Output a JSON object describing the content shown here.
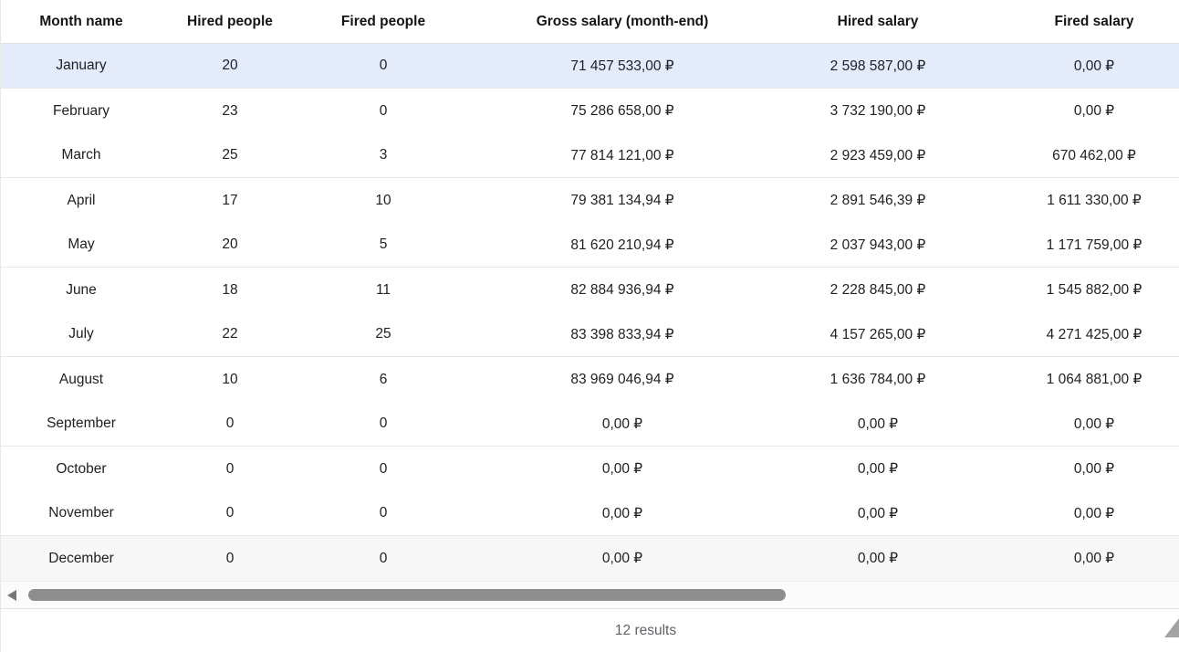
{
  "table": {
    "columns": [
      {
        "key": "month",
        "label": "Month name"
      },
      {
        "key": "hired",
        "label": "Hired people"
      },
      {
        "key": "fired",
        "label": "Fired people"
      },
      {
        "key": "gross",
        "label": "Gross salary (month-end)"
      },
      {
        "key": "hired_salary",
        "label": "Hired salary"
      },
      {
        "key": "fired_salary",
        "label": "Fired salary"
      }
    ],
    "rows": [
      {
        "month": "January",
        "hired": "20",
        "fired": "0",
        "gross": "71 457 533,00 ₽",
        "hired_salary": "2 598 587,00 ₽",
        "fired_salary": "0,00 ₽",
        "state": "selected",
        "separator": true
      },
      {
        "month": "February",
        "hired": "23",
        "fired": "0",
        "gross": "75 286 658,00 ₽",
        "hired_salary": "3 732 190,00 ₽",
        "fired_salary": "0,00 ₽",
        "state": "",
        "separator": false
      },
      {
        "month": "March",
        "hired": "25",
        "fired": "3",
        "gross": "77 814 121,00 ₽",
        "hired_salary": "2 923 459,00 ₽",
        "fired_salary": "670 462,00 ₽",
        "state": "",
        "separator": true
      },
      {
        "month": "April",
        "hired": "17",
        "fired": "10",
        "gross": "79 381 134,94 ₽",
        "hired_salary": "2 891 546,39 ₽",
        "fired_salary": "1 611 330,00 ₽",
        "state": "",
        "separator": false
      },
      {
        "month": "May",
        "hired": "20",
        "fired": "5",
        "gross": "81 620 210,94 ₽",
        "hired_salary": "2 037 943,00 ₽",
        "fired_salary": "1 171 759,00 ₽",
        "state": "",
        "separator": true
      },
      {
        "month": "June",
        "hired": "18",
        "fired": "11",
        "gross": "82 884 936,94 ₽",
        "hired_salary": "2 228 845,00 ₽",
        "fired_salary": "1 545 882,00 ₽",
        "state": "",
        "separator": false
      },
      {
        "month": "July",
        "hired": "22",
        "fired": "25",
        "gross": "83 398 833,94 ₽",
        "hired_salary": "4 157 265,00 ₽",
        "fired_salary": "4 271 425,00 ₽",
        "state": "",
        "separator": true
      },
      {
        "month": "August",
        "hired": "10",
        "fired": "6",
        "gross": "83 969 046,94 ₽",
        "hired_salary": "1 636 784,00 ₽",
        "fired_salary": "1 064 881,00 ₽",
        "state": "",
        "separator": false
      },
      {
        "month": "September",
        "hired": "0",
        "fired": "0",
        "gross": "0,00 ₽",
        "hired_salary": "0,00 ₽",
        "fired_salary": "0,00 ₽",
        "state": "",
        "separator": true
      },
      {
        "month": "October",
        "hired": "0",
        "fired": "0",
        "gross": "0,00 ₽",
        "hired_salary": "0,00 ₽",
        "fired_salary": "0,00 ₽",
        "state": "",
        "separator": false
      },
      {
        "month": "November",
        "hired": "0",
        "fired": "0",
        "gross": "0,00 ₽",
        "hired_salary": "0,00 ₽",
        "fired_salary": "0,00 ₽",
        "state": "",
        "separator": true
      },
      {
        "month": "December",
        "hired": "0",
        "fired": "0",
        "gross": "0,00 ₽",
        "hired_salary": "0,00 ₽",
        "fired_salary": "0,00 ₽",
        "state": "striped",
        "separator": false
      }
    ]
  },
  "scrollbar": {
    "orientation": "horizontal",
    "left_arrow_icon": "scroll-left-arrow",
    "thumb_color": "#8e8e8e"
  },
  "footer": {
    "results_label": "12 results"
  },
  "colors": {
    "selected_row_bg": "#e4ebfb",
    "striped_row_bg": "#f7f7f8",
    "separator": "#e7e7e7",
    "footer_text": "#5e6166"
  }
}
